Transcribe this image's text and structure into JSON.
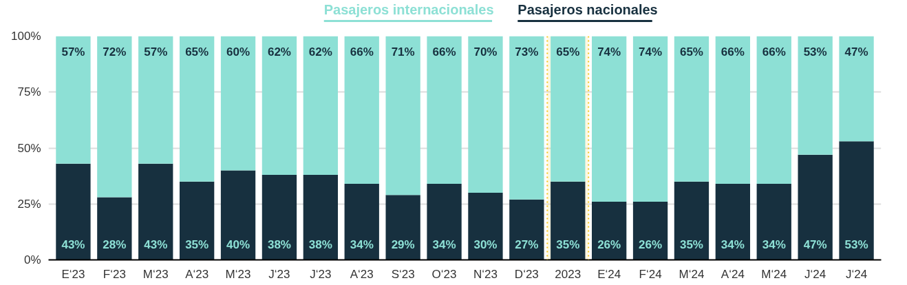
{
  "chart_data": {
    "type": "bar",
    "stacked": true,
    "categories": [
      "E‘23",
      "F‘23",
      "M‘23",
      "A‘23",
      "M‘23",
      "J‘23",
      "J‘23",
      "A‘23",
      "S‘23",
      "O‘23",
      "N‘23",
      "D‘23",
      "2023",
      "E‘24",
      "F‘24",
      "M‘24",
      "A‘24",
      "M‘24",
      "J‘24",
      "J‘24"
    ],
    "series": [
      {
        "name": "Pasajeros nacionales",
        "color": "#17303f",
        "values": [
          43,
          28,
          43,
          35,
          40,
          38,
          38,
          34,
          29,
          34,
          30,
          27,
          35,
          26,
          26,
          35,
          34,
          34,
          47,
          53
        ],
        "value_labels": [
          "43%",
          "28%",
          "43%",
          "35%",
          "40%",
          "38%",
          "38%",
          "34%",
          "29%",
          "34%",
          "30%",
          "27%",
          "35%",
          "26%",
          "26%",
          "35%",
          "34%",
          "34%",
          "47%",
          "53%"
        ]
      },
      {
        "name": "Pasajeros internacionales",
        "color": "#8de0d5",
        "values": [
          57,
          72,
          57,
          65,
          60,
          62,
          62,
          66,
          71,
          66,
          70,
          73,
          65,
          74,
          74,
          65,
          66,
          66,
          53,
          47
        ],
        "value_labels": [
          "57%",
          "72%",
          "57%",
          "65%",
          "60%",
          "62%",
          "62%",
          "66%",
          "71%",
          "66%",
          "70%",
          "73%",
          "65%",
          "74%",
          "74%",
          "65%",
          "66%",
          "66%",
          "53%",
          "47%"
        ]
      }
    ],
    "ylim": [
      0,
      100
    ],
    "yticks": [
      {
        "value": 0,
        "label": "0%"
      },
      {
        "value": 25,
        "label": "25%"
      },
      {
        "value": 50,
        "label": "50%"
      },
      {
        "value": 75,
        "label": "75%"
      },
      {
        "value": 100,
        "label": "100%"
      }
    ],
    "grid": "y",
    "legend": "top",
    "bands": [
      {
        "axis": "x",
        "from": "2023",
        "to": "2023",
        "color": "#f5c518"
      }
    ]
  }
}
